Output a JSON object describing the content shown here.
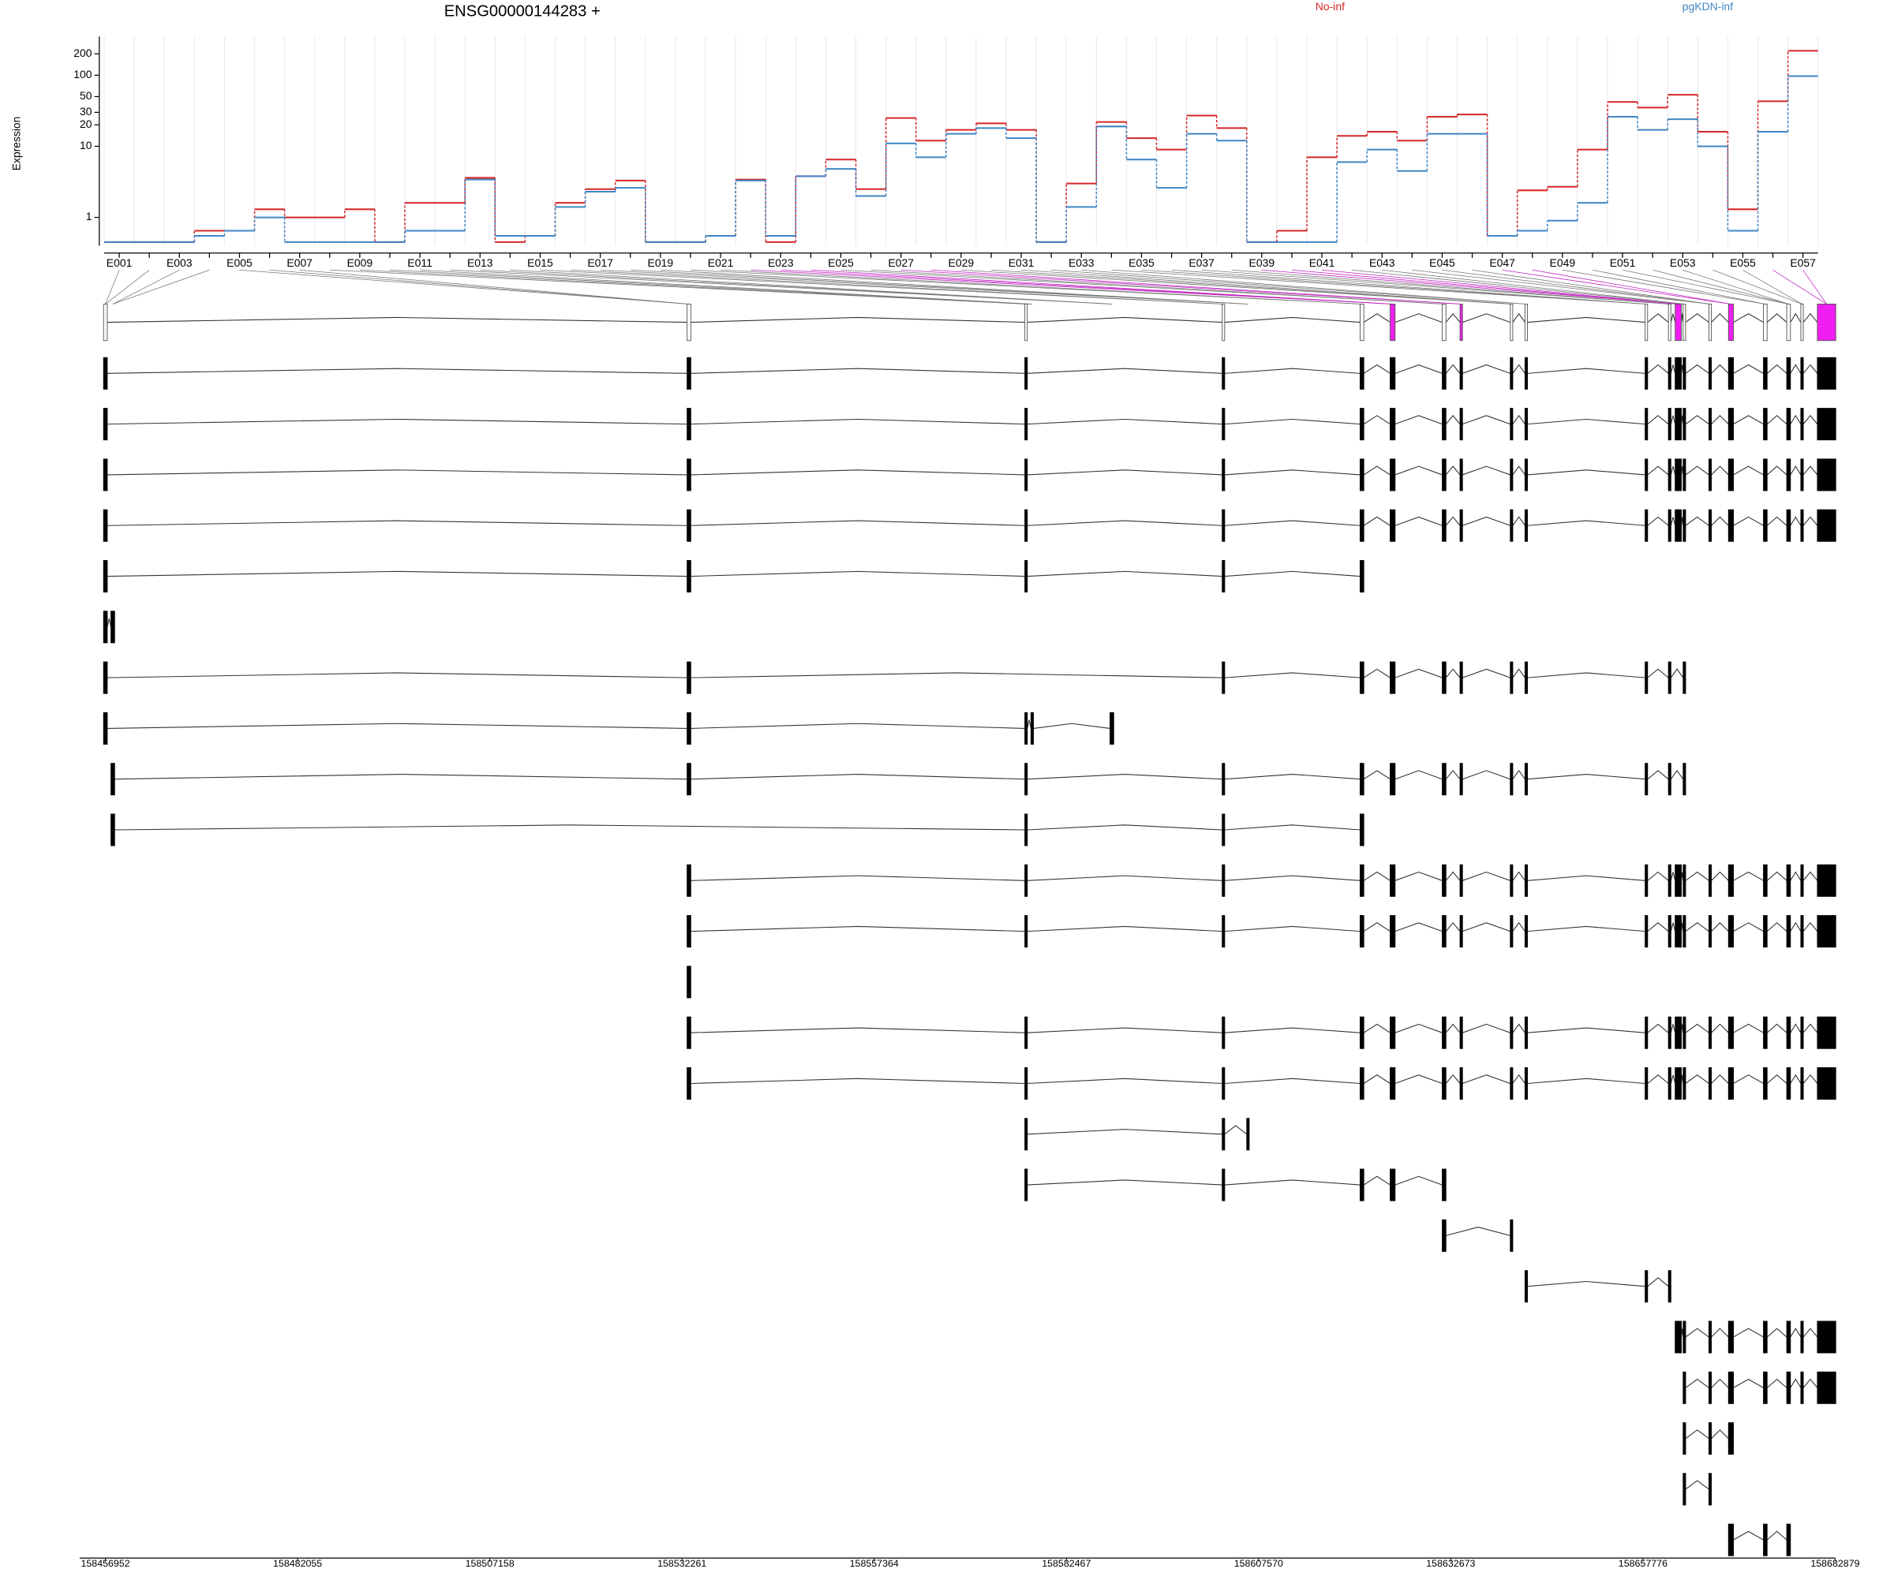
{
  "chart_data": {
    "type": "line",
    "title": "ENSG00000144283 +",
    "y_label": "Expression",
    "log_scale": true,
    "grid": true,
    "legend": "top-right",
    "categories": [
      "E001",
      null,
      "E003",
      null,
      "E005",
      null,
      "E007",
      null,
      "E009",
      null,
      "E011",
      null,
      "E013",
      null,
      "E015",
      null,
      "E017",
      null,
      "E019",
      null,
      "E021",
      null,
      "E023",
      null,
      "E025",
      null,
      "E027",
      null,
      "E029",
      null,
      "E031",
      null,
      "E033",
      null,
      "E035",
      null,
      "E037",
      null,
      "E039",
      null,
      "E041",
      null,
      "E043",
      null,
      "E045",
      null,
      "E047",
      null,
      "E049",
      null,
      "E051",
      null,
      "E053",
      null,
      "E055",
      null,
      "E057"
    ],
    "series": [
      {
        "name": "No-inf",
        "color": "#d62728",
        "values": [
          0.45,
          0.45,
          0.45,
          0.65,
          0.65,
          1.3,
          1.0,
          1.0,
          1.3,
          0.45,
          1.6,
          1.6,
          3.6,
          0.45,
          0.55,
          1.6,
          2.5,
          3.3,
          0.45,
          0.45,
          0.55,
          3.4,
          0.45,
          3.8,
          6.5,
          2.5,
          25,
          12,
          17,
          21,
          17,
          0.45,
          3.0,
          22,
          13,
          9,
          27,
          18,
          0.45,
          0.65,
          7,
          14,
          16,
          12,
          26,
          28,
          0.55,
          2.4,
          2.7,
          9,
          42,
          35,
          53,
          16,
          1.3,
          43,
          220
        ]
      },
      {
        "name": "pgKDN-inf",
        "color": "#3f86c4",
        "values": [
          0.45,
          0.45,
          0.45,
          0.55,
          0.65,
          1.0,
          0.45,
          0.45,
          0.45,
          0.45,
          0.65,
          0.65,
          3.4,
          0.55,
          0.55,
          1.4,
          2.3,
          2.6,
          0.45,
          0.45,
          0.55,
          3.3,
          0.55,
          3.8,
          4.8,
          2.0,
          11,
          7,
          15,
          18,
          13,
          0.45,
          1.4,
          19,
          6.5,
          2.6,
          15,
          12,
          0.45,
          0.45,
          0.45,
          6,
          9,
          4.5,
          15,
          15,
          0.55,
          0.65,
          0.9,
          1.6,
          26,
          17,
          24,
          10,
          0.65,
          16,
          97
        ]
      }
    ],
    "ylim": [
      0.4,
      350
    ],
    "yticks": [
      1,
      10,
      20,
      30,
      50,
      100,
      200
    ],
    "genomic_axis": {
      "xlim": [
        158456952,
        158682879
      ],
      "xticks": [
        158456952,
        158482055,
        158507158,
        158532261,
        158557364,
        158582467,
        158607570,
        158632673,
        158657776,
        158682879
      ]
    }
  }
}
